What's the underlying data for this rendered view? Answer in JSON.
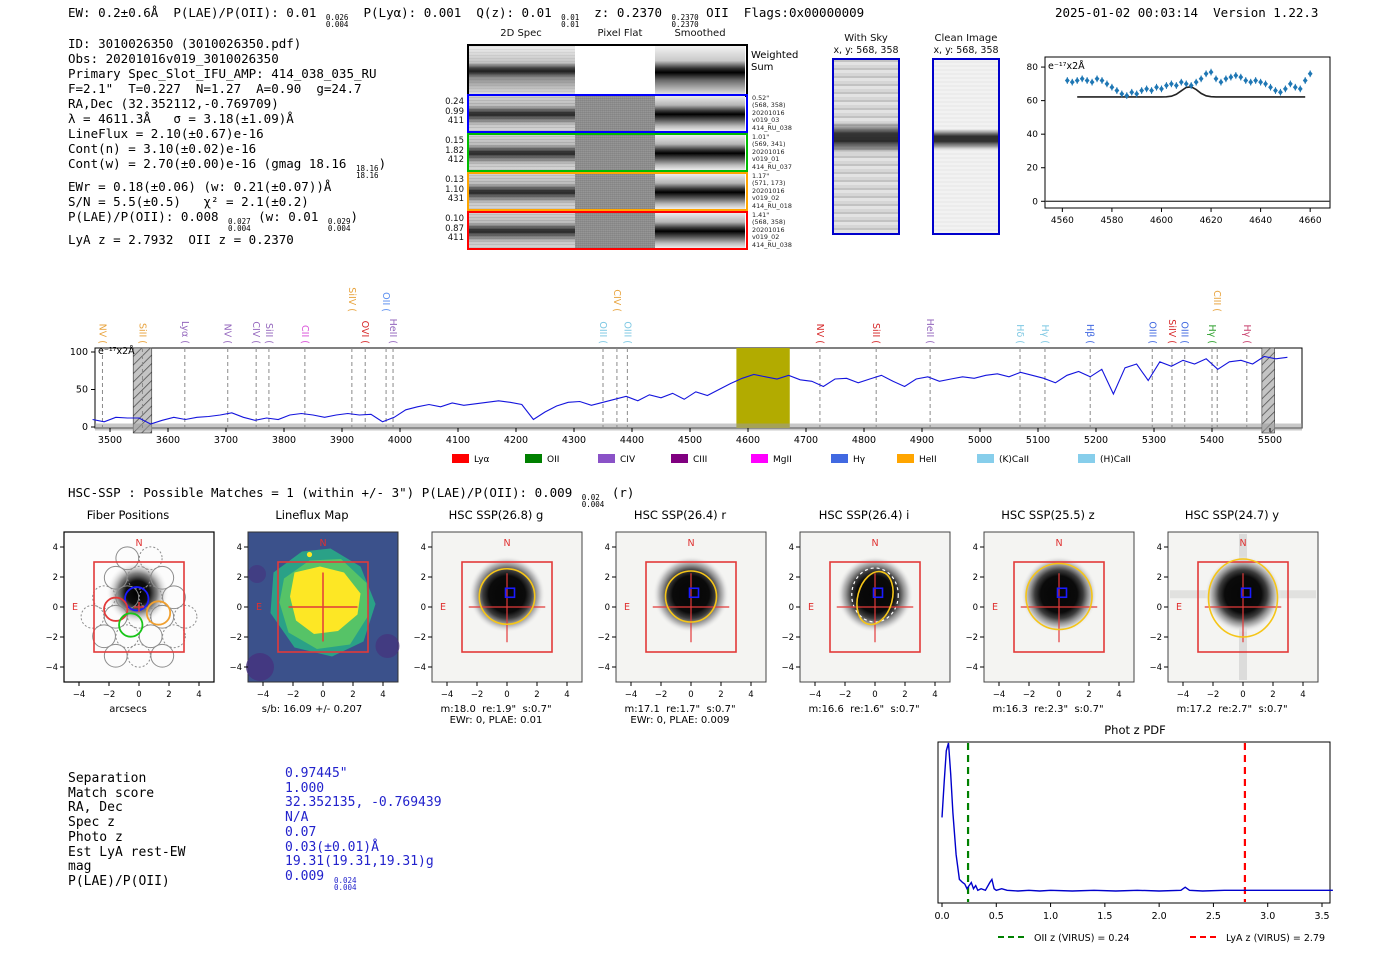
{
  "header": {
    "left": "EW: 0.2±0.6Å  P(LAE)/P(OII): 0.01 ^{0.026}_{0.004}  P(Lyα): 0.001  Q(z): 0.01 ^{0.01}_{0.01}  z: 0.2370 ^{0.2370}_{0.2370} OII  Flags:0x00000009",
    "timestamp": "2025-01-02 00:03:14",
    "version": "Version 1.22.3"
  },
  "info_lines": [
    "ID: 3010026350 (3010026350.pdf)",
    "Obs: 20201016v019_3010026350",
    "Primary Spec_Slot_IFU_AMP: 414_038_035_RU",
    "F=2.1\"  T=0.227  N=1.27  A=0.90  g=24.7",
    "RA,Dec (32.352112,-0.769709)",
    "λ = 4611.3Å   σ = 3.18(±1.09)Å",
    "LineFlux = 2.10(±0.67)e-16",
    "Cont(n) = 3.10(±0.02)e-16",
    "Cont(w) = 2.70(±0.00)e-16 (gmag 18.16 ^{18.16}_{18.16})",
    "EWr = 0.18(±0.06) (w: 0.21(±0.07))Å",
    "S/N = 5.5(±0.5)   χ² = 2.1(±0.2)",
    "P(LAE)/P(OII): 0.008 ^{0.027}_{0.004} (w: 0.01 ^{0.029}_{0.004})",
    "LyA z = 2.7932  OII z = 0.2370"
  ],
  "spec2d": {
    "col_headers": [
      "2D Spec",
      "Pixel Flat",
      "Smoothed"
    ],
    "weighted_label": "Weighted\nSum",
    "rows": [
      {
        "border": "#000000",
        "kind": "weighted",
        "left": [],
        "right": []
      },
      {
        "border": "#0000ff",
        "kind": "fiber",
        "left": [
          "0.24",
          "0.99",
          "411"
        ],
        "right": [
          "0.52\"",
          "(568, 358)",
          "20201016",
          "v019_03",
          "414_RU_038"
        ]
      },
      {
        "border": "#00bb00",
        "kind": "fiber",
        "left": [
          "0.15",
          "1.82",
          "412"
        ],
        "right": [
          "1.01\"",
          "(569, 341)",
          "20201016",
          "v019_01",
          "414_RU_037"
        ]
      },
      {
        "border": "#ffa500",
        "kind": "fiber",
        "left": [
          "0.13",
          "1.10",
          "431"
        ],
        "right": [
          "1.17\"",
          "(571, 173)",
          "20201016",
          "v019_02",
          "414_RU_018"
        ]
      },
      {
        "border": "#ff0000",
        "kind": "fiber",
        "left": [
          "0.10",
          "0.87",
          "411"
        ],
        "right": [
          "1.41\"",
          "(568, 358)",
          "20201016",
          "v019_02",
          "414_RU_038"
        ]
      }
    ]
  },
  "withsky": {
    "title": "With Sky",
    "coords": "x, y: 568, 358"
  },
  "clean": {
    "title": "Clean Image",
    "coords": "x, y: 568, 358"
  },
  "hsc_header": "HSC-SSP : Possible Matches = 1 (within +/- 3\")  P(LAE)/P(OII): 0.009 ^{0.02}_{0.004} (r)",
  "chart_data": [
    {
      "type": "scatter",
      "name": "line-zoom-spectrum",
      "annotation": "e⁻¹⁷x2Å",
      "x_start": 4562,
      "x_step": 2,
      "values": [
        72,
        71,
        72,
        73,
        72,
        71,
        73,
        72,
        70,
        68,
        66,
        64,
        63,
        65,
        64,
        66,
        67,
        66,
        68,
        67,
        69,
        70,
        69,
        71,
        70,
        69,
        71,
        73,
        76,
        77,
        73,
        71,
        73,
        74,
        75,
        74,
        72,
        71,
        72,
        71,
        70,
        68,
        66,
        65,
        67,
        70,
        68,
        67,
        72,
        76
      ],
      "error": 2,
      "model": {
        "baseline": 62.2,
        "amplitude": 6.2,
        "center": 4611.3,
        "sigma": 3.2
      },
      "xticks": [
        4560,
        4580,
        4600,
        4620,
        4640,
        4660
      ],
      "yticks": [
        0,
        20,
        40,
        60,
        80
      ],
      "xlim": [
        4553,
        4668
      ],
      "ylim": [
        -4,
        86
      ],
      "marker_color": "#1f77b4",
      "model_color": "#222222"
    },
    {
      "type": "line",
      "name": "full-spectrum",
      "annotation": "e⁻¹⁷x2Å",
      "x_start": 3470,
      "x_step": 20,
      "values": [
        10,
        7,
        13,
        12,
        12,
        4,
        9,
        13,
        10,
        13,
        14,
        16,
        19,
        13,
        9,
        12,
        10,
        16,
        18,
        16,
        13,
        16,
        18,
        16,
        17,
        7,
        13,
        23,
        27,
        30,
        27,
        32,
        29,
        31,
        33,
        35,
        33,
        30,
        10,
        20,
        28,
        33,
        34,
        29,
        33,
        37,
        41,
        35,
        43,
        39,
        45,
        37,
        47,
        42,
        50,
        58,
        65,
        70,
        67,
        64,
        69,
        63,
        61,
        54,
        64,
        65,
        59,
        64,
        69,
        61,
        54,
        64,
        67,
        61,
        64,
        67,
        65,
        69,
        71,
        67,
        73,
        69,
        65,
        59,
        69,
        74,
        67,
        77,
        44,
        79,
        84,
        62,
        87,
        81,
        89,
        84,
        91,
        77,
        87,
        89,
        84,
        94,
        91,
        93
      ],
      "xticks": [
        3500,
        3600,
        3700,
        3800,
        3900,
        4000,
        4100,
        4200,
        4300,
        4400,
        4500,
        4600,
        4700,
        4800,
        4900,
        5000,
        5100,
        5200,
        5300,
        5400,
        5500
      ],
      "yticks": [
        0,
        50,
        100
      ],
      "xlim": [
        3474,
        5555
      ],
      "ylim": [
        -3,
        105
      ],
      "line_color": "#1414dd",
      "highlight_band": [
        4580,
        4672
      ],
      "highlight_color": "#b2ab00",
      "hatched_bands": [
        [
          3540,
          3572
        ],
        [
          5486,
          5508
        ]
      ],
      "lines": [
        {
          "label": "NV",
          "wave": 3487,
          "color": "#e8a33d",
          "lvl": 0
        },
        {
          "label": "SiII",
          "wave": 3556,
          "color": "#e8a33d",
          "lvl": 0
        },
        {
          "label": "Lyα",
          "wave": 3629,
          "color": "#9467bd",
          "lvl": 0
        },
        {
          "label": "NV",
          "wave": 3703,
          "color": "#9467bd",
          "lvl": 0
        },
        {
          "label": "CIV",
          "wave": 3752,
          "color": "#9467bd",
          "lvl": 0
        },
        {
          "label": "SiII",
          "wave": 3774,
          "color": "#9467bd",
          "lvl": 0
        },
        {
          "label": "CII",
          "wave": 3836,
          "color": "#d94fd9",
          "lvl": 0
        },
        {
          "label": "SiIV",
          "wave": 3917,
          "color": "#e8a33d",
          "lvl": 1
        },
        {
          "label": "OVI",
          "wave": 3940,
          "color": "#d62728",
          "lvl": 0
        },
        {
          "label": "OII",
          "wave": 3976,
          "color": "#5b8ff0",
          "lvl": 1
        },
        {
          "label": "HeII",
          "wave": 3988,
          "color": "#9467bd",
          "lvl": 0
        },
        {
          "label": "OIII",
          "wave": 4350,
          "color": "#7ec8e3",
          "lvl": 0
        },
        {
          "label": "CIV",
          "wave": 4374,
          "color": "#e8a33d",
          "lvl": 1
        },
        {
          "label": "OIII",
          "wave": 4392,
          "color": "#7ec8e3",
          "lvl": 0
        },
        {
          "label": "NV",
          "wave": 4724,
          "color": "#d62728",
          "lvl": 0
        },
        {
          "label": "SiII",
          "wave": 4821,
          "color": "#d62728",
          "lvl": 0
        },
        {
          "label": "HeII",
          "wave": 4914,
          "color": "#9467bd",
          "lvl": 0
        },
        {
          "label": "Hδ",
          "wave": 5069,
          "color": "#7ec8e3",
          "lvl": 0
        },
        {
          "label": "Hγ",
          "wave": 5112,
          "color": "#7ec8e3",
          "lvl": 0
        },
        {
          "label": "Hβ",
          "wave": 5190,
          "color": "#4169e1",
          "lvl": 0
        },
        {
          "label": "OIII",
          "wave": 5297,
          "color": "#4169e1",
          "lvl": 0
        },
        {
          "label": "SiIV",
          "wave": 5331,
          "color": "#d62728",
          "lvl": 0
        },
        {
          "label": "OIII",
          "wave": 5353,
          "color": "#4169e1",
          "lvl": 0
        },
        {
          "label": "Hγ",
          "wave": 5400,
          "color": "#2ca02c",
          "lvl": 0
        },
        {
          "label": "CIII",
          "wave": 5409,
          "color": "#e8a33d",
          "lvl": 1
        },
        {
          "label": "Hγ",
          "wave": 5460,
          "color": "#c8416e",
          "lvl": 0
        }
      ],
      "legend": [
        {
          "label": "Lyα",
          "color": "#ff0000"
        },
        {
          "label": "OII",
          "color": "#008000"
        },
        {
          "label": "CIV",
          "color": "#8a52c7"
        },
        {
          "label": "CIII",
          "color": "#800080"
        },
        {
          "label": "MgII",
          "color": "#ff00ff"
        },
        {
          "label": "Hγ",
          "color": "#4169e1"
        },
        {
          "label": "HeII",
          "color": "#ffa500"
        },
        {
          "label": "(K)CaII",
          "color": "#87ceeb"
        },
        {
          "label": "(H)CaII",
          "color": "#87ceeb"
        }
      ]
    },
    {
      "type": "line",
      "name": "phot-z-pdf",
      "title": "Phot z PDF",
      "x": [
        0.0,
        0.02,
        0.04,
        0.06,
        0.08,
        0.1,
        0.13,
        0.16,
        0.19,
        0.21,
        0.23,
        0.25,
        0.27,
        0.29,
        0.31,
        0.33,
        0.36,
        0.4,
        0.44,
        0.46,
        0.48,
        0.5,
        0.55,
        0.6,
        0.7,
        0.8,
        0.9,
        1.0,
        1.2,
        1.4,
        1.6,
        1.8,
        2.0,
        2.2,
        2.24,
        2.28,
        2.4,
        2.6,
        2.8,
        3.0,
        3.2,
        3.4,
        3.6
      ],
      "y": [
        0.52,
        0.75,
        0.95,
        1.0,
        0.8,
        0.55,
        0.28,
        0.12,
        0.1,
        0.09,
        0.06,
        0.08,
        0.1,
        0.06,
        0.08,
        0.05,
        0.06,
        0.05,
        0.1,
        0.12,
        0.06,
        0.05,
        0.06,
        0.05,
        0.045,
        0.05,
        0.045,
        0.05,
        0.045,
        0.05,
        0.045,
        0.05,
        0.045,
        0.05,
        0.07,
        0.05,
        0.045,
        0.05,
        0.05,
        0.05,
        0.05,
        0.05,
        0.05
      ],
      "xticks": [
        0.0,
        0.5,
        1.0,
        1.5,
        2.0,
        2.5,
        3.0,
        3.5
      ],
      "line_color": "#0000cc",
      "vlines": [
        {
          "x": 0.24,
          "color": "#008000",
          "label": "OII z (VIRUS) = 0.24"
        },
        {
          "x": 2.79,
          "color": "#ff0000",
          "label": "LyA z (VIRUS) = 2.79"
        }
      ]
    }
  ],
  "cutouts": [
    {
      "key": "fiber",
      "type": "fiber",
      "title": "Fiber Positions",
      "xlabel": "arcsecs",
      "north": "N",
      "east": "E"
    },
    {
      "key": "lineflux",
      "type": "map",
      "title": "Lineflux Map",
      "caption1": "s/b: 16.09 +/- 0.207",
      "north": "N",
      "east": "E"
    },
    {
      "key": "g",
      "type": "img",
      "title": "HSC SSP(26.8) g",
      "caption1": "m:18.0  re:1.9\"  s:0.7\"",
      "caption2": "EWr: 0, PLAE: 0.01",
      "north": "N",
      "east": "E"
    },
    {
      "key": "r",
      "type": "img",
      "title": "HSC SSP(26.4) r",
      "caption1": "m:17.1  re:1.7\"  s:0.7\"",
      "caption2": "EWr: 0, PLAE: 0.009",
      "north": "N",
      "east": "E"
    },
    {
      "key": "i",
      "type": "img",
      "title": "HSC SSP(26.4) i",
      "caption1": "m:16.6  re:1.6\"  s:0.7\"",
      "north": "N",
      "east": "E"
    },
    {
      "key": "z",
      "type": "img",
      "title": "HSC SSP(25.5) z",
      "caption1": "m:16.3  re:2.3\"  s:0.7\"",
      "north": "N",
      "east": "E"
    },
    {
      "key": "y",
      "type": "img",
      "title": "HSC SSP(24.7) y",
      "caption1": "m:17.2  re:2.7\"  s:0.7\"",
      "north": "N",
      "east": "E"
    }
  ],
  "cutout_ticks": [
    -4,
    -2,
    0,
    2,
    4
  ],
  "match_table": {
    "rows": [
      {
        "label": "Separation",
        "value": "0.97445\""
      },
      {
        "label": "Match score",
        "value": "1.000"
      },
      {
        "label": "RA, Dec",
        "value": "32.352135, -0.769439"
      },
      {
        "label": "Spec z",
        "value": "N/A"
      },
      {
        "label": "Photo z",
        "value": "0.07"
      },
      {
        "label": "Est LyA rest-EW",
        "value": "0.03(±0.01)Å"
      },
      {
        "label": "mag",
        "value": "19.31(19.31,19.31)g"
      },
      {
        "label": "P(LAE)/P(OII)",
        "value": "0.009 ^{0.024}_{0.004}"
      }
    ]
  }
}
